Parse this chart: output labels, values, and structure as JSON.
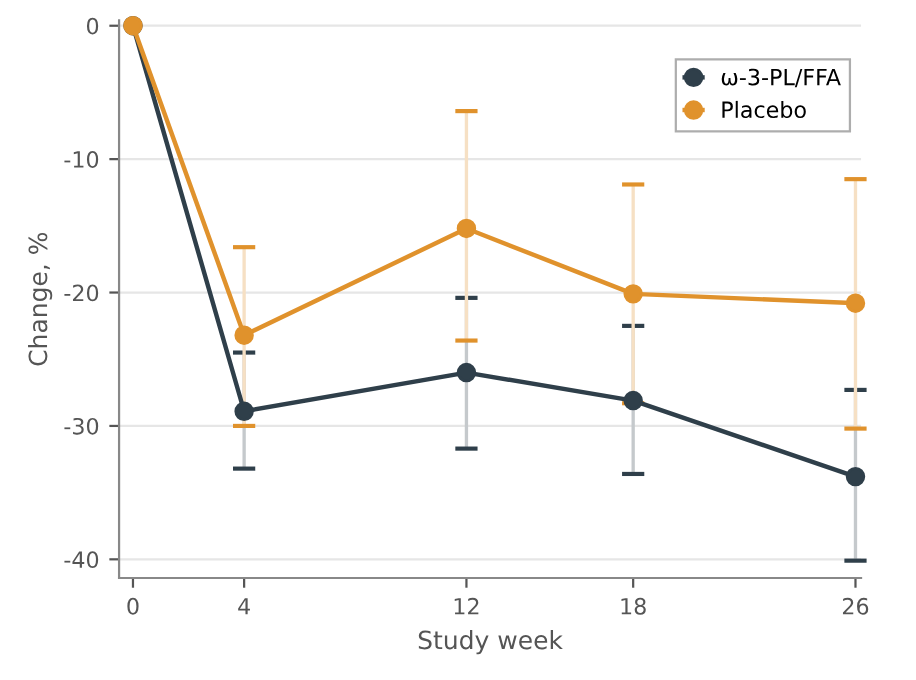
{
  "chart_data": {
    "type": "line",
    "xlabel": "Study week",
    "ylabel": "Change, %",
    "x": [
      0,
      4,
      12,
      18,
      26
    ],
    "series": [
      {
        "name": "ω-3-PL/FFA",
        "color": "#2f3f4a",
        "values": [
          0,
          -28.9,
          -26.0,
          -28.1,
          -33.8
        ],
        "errors": [
          null,
          [
            -33.2,
            -24.5
          ],
          [
            -31.7,
            -20.4
          ],
          [
            -33.6,
            -22.5
          ],
          [
            -40.1,
            -27.3
          ]
        ]
      },
      {
        "name": "Placebo",
        "color": "#e0922c",
        "values": [
          0,
          -23.2,
          -15.2,
          -20.1,
          -20.8
        ],
        "errors": [
          null,
          [
            -30.0,
            -16.6
          ],
          [
            -23.6,
            -6.4
          ],
          [
            -28.3,
            -11.9
          ],
          [
            -30.2,
            -11.5
          ]
        ]
      }
    ],
    "xlim": [
      -0.5,
      26.2
    ],
    "xticks": [
      0,
      4,
      12,
      18,
      26
    ],
    "ylim": [
      -41.4,
      0.4
    ],
    "yticks": [
      0,
      -10,
      -20,
      -30,
      -40
    ],
    "grid": "y",
    "legend": "top right",
    "marker": "circle",
    "line_style": "solid"
  }
}
